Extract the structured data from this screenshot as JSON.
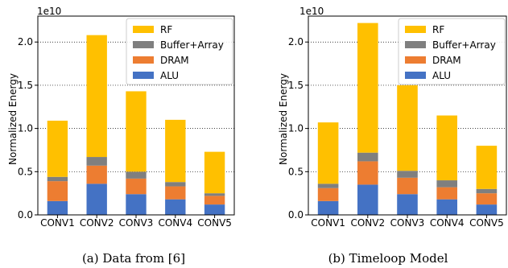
{
  "chart_data": [
    {
      "type": "bar",
      "stacked": true,
      "caption": "(a) Data from [6]",
      "title": "",
      "xlabel": "",
      "ylabel": "Normalized Energy",
      "offset_text": "1e10",
      "ylim": [
        0,
        23000000000.0
      ],
      "yticks": [
        0,
        5000000000.0,
        10000000000.0,
        15000000000.0,
        20000000000.0
      ],
      "ytick_labels": [
        "0.0",
        "0.5",
        "1.0",
        "1.5",
        "2.0"
      ],
      "grid": "horizontal dotted",
      "legend_position": "top-right",
      "categories": [
        "CONV1",
        "CONV2",
        "CONV3",
        "CONV4",
        "CONV5"
      ],
      "series": [
        {
          "name": "ALU",
          "color": "#4472c4",
          "values": [
            1600000000.0,
            3600000000.0,
            2400000000.0,
            1800000000.0,
            1200000000.0
          ]
        },
        {
          "name": "DRAM",
          "color": "#ed7d31",
          "values": [
            2300000000.0,
            2100000000.0,
            1800000000.0,
            1500000000.0,
            1000000000.0
          ]
        },
        {
          "name": "Buffer+Array",
          "color": "#7f7f7f",
          "values": [
            500000000.0,
            1000000000.0,
            800000000.0,
            500000000.0,
            300000000.0
          ]
        },
        {
          "name": "RF",
          "color": "#ffc000",
          "values": [
            6500000000.0,
            14100000000.0,
            9300000000.0,
            7200000000.0,
            4800000000.0
          ]
        }
      ]
    },
    {
      "type": "bar",
      "stacked": true,
      "caption": "(b) Timeloop Model",
      "title": "",
      "xlabel": "",
      "ylabel": "Normalized Energy",
      "offset_text": "1e10",
      "ylim": [
        0,
        23000000000.0
      ],
      "yticks": [
        0,
        5000000000.0,
        10000000000.0,
        15000000000.0,
        20000000000.0
      ],
      "ytick_labels": [
        "0.0",
        "0.5",
        "1.0",
        "1.5",
        "2.0"
      ],
      "grid": "horizontal dotted",
      "legend_position": "top-right",
      "categories": [
        "CONV1",
        "CONV2",
        "CONV3",
        "CONV4",
        "CONV5"
      ],
      "series": [
        {
          "name": "ALU",
          "color": "#4472c4",
          "values": [
            1600000000.0,
            3500000000.0,
            2400000000.0,
            1800000000.0,
            1200000000.0
          ]
        },
        {
          "name": "DRAM",
          "color": "#ed7d31",
          "values": [
            1500000000.0,
            2700000000.0,
            1900000000.0,
            1400000000.0,
            1300000000.0
          ]
        },
        {
          "name": "Buffer+Array",
          "color": "#7f7f7f",
          "values": [
            500000000.0,
            1000000000.0,
            800000000.0,
            800000000.0,
            500000000.0
          ]
        },
        {
          "name": "RF",
          "color": "#ffc000",
          "values": [
            7100000000.0,
            15000000000.0,
            9900000000.0,
            7500000000.0,
            5000000000.0
          ]
        }
      ]
    }
  ]
}
